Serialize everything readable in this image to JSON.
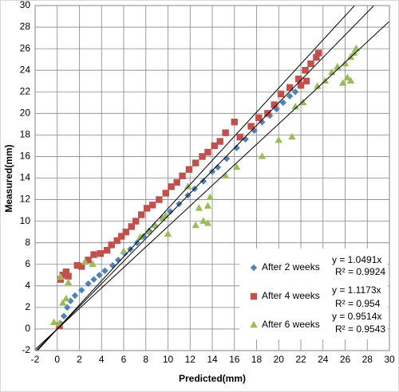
{
  "chart_data": {
    "type": "scatter",
    "x_label": "Predicted(mm)",
    "y_label": "Measured(mm)",
    "xlim": [
      -2,
      30
    ],
    "ylim": [
      -2,
      30
    ],
    "xticks": [
      -2,
      0,
      2,
      4,
      6,
      8,
      10,
      12,
      14,
      16,
      18,
      20,
      22,
      24,
      26,
      28,
      30
    ],
    "yticks": [
      -2,
      0,
      2,
      4,
      6,
      8,
      10,
      12,
      14,
      16,
      18,
      20,
      22,
      24,
      26,
      28,
      30
    ],
    "grid": true,
    "legend": "lower right",
    "series": [
      {
        "name": "After 2 weeks",
        "color": "#4f81bd",
        "marker": "diamond",
        "x": [
          0.3,
          0.6,
          0.9,
          1.2,
          1.6,
          2.2,
          2.8,
          3.3,
          3.8,
          4.3,
          5.0,
          5.5,
          6.1,
          6.6,
          7.2,
          7.8,
          8.3,
          8.8,
          9.5,
          10.2,
          11.0,
          11.8,
          12.4,
          13.2,
          14.0,
          14.5,
          15.3,
          16.2,
          17.0,
          17.8,
          18.5,
          19.2,
          19.8,
          20.4,
          21.0,
          21.5
        ],
        "values": [
          0.5,
          1.2,
          2.0,
          2.6,
          3.1,
          3.6,
          4.2,
          4.6,
          5.0,
          5.4,
          5.9,
          6.4,
          7.0,
          7.4,
          8.0,
          8.6,
          9.1,
          9.6,
          10.3,
          10.9,
          11.6,
          12.4,
          13.0,
          13.7,
          14.6,
          15.0,
          15.8,
          16.8,
          17.6,
          18.4,
          19.2,
          19.8,
          20.4,
          21.0,
          21.6,
          22.0
        ],
        "trendline": {
          "slope": 1.0491,
          "equation": "y = 1.0491x",
          "r_squared": "R² = 0.9924"
        }
      },
      {
        "name": "After 4 weeks",
        "color": "#c0504d",
        "marker": "square",
        "x": [
          0.2,
          0.3,
          0.5,
          0.8,
          1.0,
          1.8,
          2.2,
          2.8,
          3.3,
          3.9,
          4.5,
          4.9,
          5.4,
          5.8,
          6.2,
          6.7,
          7.1,
          7.6,
          8.1,
          8.6,
          9.2,
          9.8,
          10.3,
          10.8,
          11.3,
          11.9,
          12.5,
          13.1,
          13.6,
          14.2,
          14.7,
          15.2,
          16.0,
          16.5,
          17.5,
          18.2,
          19.0,
          19.6,
          20.2,
          21.0,
          21.8,
          22.4,
          22.9,
          23.4,
          23.6,
          22.0,
          22.5
        ],
        "values": [
          0.3,
          4.6,
          5.0,
          5.3,
          4.9,
          5.9,
          5.8,
          6.4,
          6.9,
          7.0,
          7.3,
          7.8,
          8.2,
          8.6,
          9.0,
          9.5,
          10.0,
          10.6,
          11.2,
          11.5,
          12.0,
          12.6,
          13.2,
          13.6,
          14.2,
          14.8,
          15.4,
          16.0,
          16.4,
          17.0,
          17.4,
          18.2,
          19.2,
          17.8,
          18.8,
          19.6,
          20.0,
          20.8,
          21.8,
          22.4,
          23.2,
          24.0,
          24.6,
          25.2,
          25.6,
          22.6,
          23.0
        ],
        "trendline": {
          "slope": 1.1173,
          "equation": "y = 1.1173x",
          "r_squared": "R² = 0.954"
        }
      },
      {
        "name": "After 6 weeks",
        "color": "#9bbb59",
        "marker": "triangle",
        "x": [
          -0.3,
          0.2,
          0.5,
          0.8,
          0.3,
          1.0,
          2.5,
          3.2,
          6.0,
          7.5,
          8.2,
          8.8,
          9.5,
          10.0,
          9.8,
          12.5,
          12.8,
          13.2,
          13.6,
          13.6,
          13.8,
          11.8,
          15.2,
          16.2,
          18.5,
          20.0,
          21.2,
          21.5,
          22.2,
          23.5,
          24.2,
          24.8,
          25.3,
          25.8,
          26.2,
          26.5,
          26.0,
          26.5,
          26.8,
          27.0
        ],
        "values": [
          0.6,
          0.5,
          2.4,
          2.8,
          4.8,
          4.3,
          6.2,
          6.0,
          7.2,
          8.5,
          9.0,
          9.6,
          10.2,
          8.8,
          10.5,
          9.6,
          11.2,
          10.0,
          9.8,
          11.4,
          12.2,
          13.2,
          14.2,
          15.0,
          16.0,
          17.5,
          17.8,
          20.6,
          21.0,
          22.5,
          23.0,
          23.8,
          24.3,
          22.8,
          23.3,
          23.0,
          24.6,
          25.2,
          25.6,
          26.0
        ],
        "trendline": {
          "slope": 0.9514,
          "equation": "y = 0.9514x",
          "r_squared": "R² = 0.9543"
        }
      }
    ]
  }
}
